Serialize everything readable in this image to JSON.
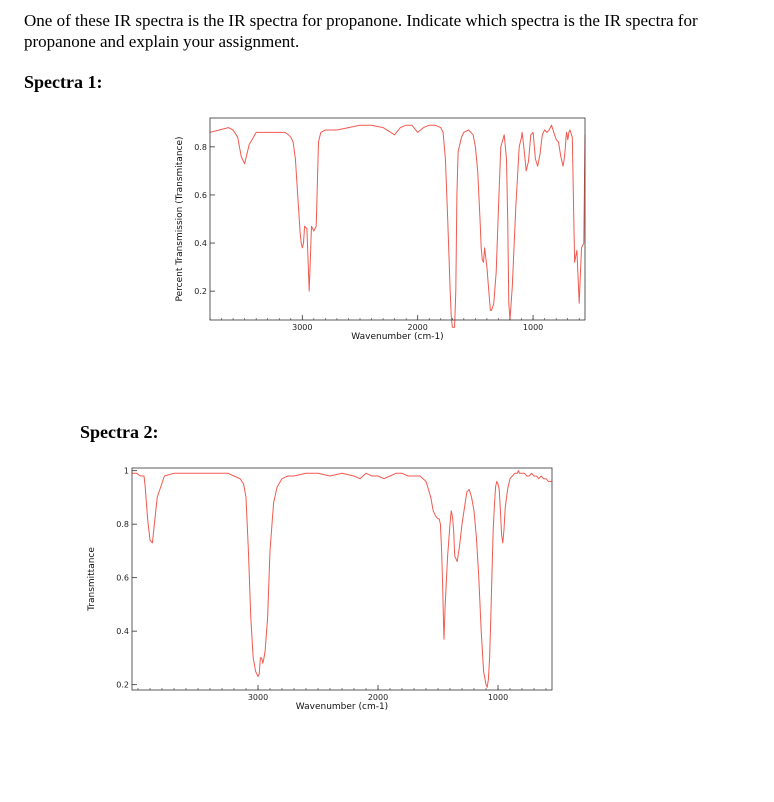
{
  "question": "One of these IR spectra is the IR spectra for propanone.  Indicate which spectra is the IR spectra for propanone and explain your assignment.",
  "spectrum1_heading": "Spectra 1:",
  "spectrum2_heading": "Spectra 2:",
  "colors": {
    "trace": "#f05a50",
    "axis": "#333333"
  },
  "chart_data": [
    {
      "type": "line",
      "title": "",
      "xlabel": "Wavenumber (cm-1)",
      "ylabel": "Percent Transmission (Transmitance)",
      "x_reversed": true,
      "xlim": [
        3800,
        550
      ],
      "ylim": [
        0.08,
        0.92
      ],
      "x_ticks": [
        3000,
        2000,
        1000
      ],
      "x_tick_labels": [
        "3000",
        "2000",
        "1000"
      ],
      "y_ticks": [
        0.2,
        0.4,
        0.6,
        0.8
      ],
      "y_tick_labels": [
        "0.2",
        "0.4",
        "0.6",
        "0.8"
      ],
      "grid": false,
      "series": [
        {
          "x": [
            3800,
            3720,
            3640,
            3600,
            3560,
            3530,
            3500,
            3460,
            3400,
            3300,
            3200,
            3150,
            3120,
            3100,
            3080,
            3060,
            3040,
            3020,
            3010,
            3000,
            2990,
            2980,
            2960,
            2940,
            2920,
            2900,
            2880,
            2860,
            2840,
            2800,
            2760,
            2700,
            2600,
            2500,
            2400,
            2300,
            2200,
            2150,
            2100,
            2050,
            2000,
            1950,
            1900,
            1850,
            1800,
            1780,
            1760,
            1740,
            1720,
            1710,
            1700,
            1690,
            1680,
            1670,
            1660,
            1650,
            1620,
            1600,
            1560,
            1520,
            1500,
            1480,
            1460,
            1450,
            1440,
            1430,
            1420,
            1400,
            1380,
            1370,
            1360,
            1340,
            1320,
            1300,
            1280,
            1250,
            1230,
            1220,
            1210,
            1200,
            1180,
            1150,
            1120,
            1100,
            1095,
            1090,
            1080,
            1060,
            1040,
            1020,
            1000,
            980,
            960,
            940,
            920,
            900,
            880,
            860,
            840,
            820,
            800,
            780,
            760,
            740,
            730,
            720,
            715,
            710,
            705,
            700,
            695,
            690,
            680,
            660,
            640,
            620,
            600,
            580,
            560,
            550
          ],
          "y": [
            0.86,
            0.87,
            0.88,
            0.87,
            0.84,
            0.76,
            0.73,
            0.81,
            0.86,
            0.86,
            0.86,
            0.86,
            0.85,
            0.84,
            0.82,
            0.75,
            0.6,
            0.45,
            0.4,
            0.38,
            0.4,
            0.47,
            0.46,
            0.2,
            0.47,
            0.45,
            0.47,
            0.82,
            0.86,
            0.87,
            0.87,
            0.87,
            0.88,
            0.89,
            0.89,
            0.88,
            0.85,
            0.88,
            0.89,
            0.89,
            0.86,
            0.88,
            0.89,
            0.89,
            0.88,
            0.86,
            0.75,
            0.5,
            0.22,
            0.1,
            0.05,
            0.05,
            0.05,
            0.2,
            0.6,
            0.78,
            0.84,
            0.86,
            0.87,
            0.85,
            0.8,
            0.7,
            0.5,
            0.38,
            0.33,
            0.32,
            0.38,
            0.3,
            0.18,
            0.12,
            0.12,
            0.15,
            0.28,
            0.55,
            0.8,
            0.85,
            0.75,
            0.5,
            0.15,
            0.08,
            0.22,
            0.55,
            0.8,
            0.84,
            0.86,
            0.84,
            0.8,
            0.7,
            0.74,
            0.85,
            0.86,
            0.75,
            0.72,
            0.77,
            0.85,
            0.87,
            0.86,
            0.87,
            0.89,
            0.86,
            0.83,
            0.82,
            0.76,
            0.72,
            0.75,
            0.8,
            0.84,
            0.86,
            0.85,
            0.83,
            0.84,
            0.86,
            0.87,
            0.84,
            0.32,
            0.37,
            0.15,
            0.38,
            0.4,
            0.85
          ]
        }
      ]
    },
    {
      "type": "line",
      "title": "",
      "xlabel": "Wavenumber (cm-1)",
      "ylabel": "Transmittance",
      "x_reversed": true,
      "xlim": [
        4050,
        550
      ],
      "ylim": [
        0.18,
        1.01
      ],
      "x_ticks": [
        3000,
        2000,
        1000
      ],
      "x_tick_labels": [
        "3000",
        "2000",
        "1000"
      ],
      "y_ticks": [
        0.2,
        0.4,
        0.6,
        0.8,
        1.0
      ],
      "y_tick_labels": [
        "0.2",
        "0.4",
        "0.6",
        "0.8",
        "1"
      ],
      "grid": false,
      "series": [
        {
          "x": [
            4050,
            4010,
            3980,
            3950,
            3940,
            3920,
            3900,
            3880,
            3840,
            3780,
            3700,
            3600,
            3500,
            3400,
            3350,
            3300,
            3250,
            3200,
            3150,
            3120,
            3100,
            3080,
            3060,
            3040,
            3020,
            3000,
            2990,
            2980,
            2970,
            2960,
            2950,
            2940,
            2920,
            2900,
            2870,
            2840,
            2800,
            2750,
            2700,
            2600,
            2500,
            2400,
            2300,
            2200,
            2150,
            2100,
            2050,
            2000,
            1950,
            1900,
            1850,
            1800,
            1750,
            1700,
            1650,
            1600,
            1560,
            1540,
            1520,
            1500,
            1490,
            1480,
            1470,
            1460,
            1455,
            1450,
            1440,
            1420,
            1400,
            1390,
            1380,
            1370,
            1360,
            1340,
            1320,
            1300,
            1280,
            1260,
            1240,
            1220,
            1200,
            1180,
            1160,
            1140,
            1120,
            1100,
            1090,
            1080,
            1070,
            1060,
            1050,
            1040,
            1030,
            1020,
            1010,
            1000,
            990,
            980,
            970,
            960,
            950,
            940,
            920,
            900,
            880,
            860,
            850,
            840,
            830,
            820,
            810,
            800,
            780,
            760,
            740,
            720,
            700,
            680,
            660,
            640,
            620,
            600,
            580,
            560,
            550
          ],
          "y": [
            0.99,
            0.99,
            0.98,
            0.98,
            0.94,
            0.82,
            0.74,
            0.73,
            0.9,
            0.98,
            0.99,
            0.99,
            0.99,
            0.99,
            0.99,
            0.99,
            0.99,
            0.98,
            0.97,
            0.95,
            0.9,
            0.7,
            0.45,
            0.3,
            0.25,
            0.23,
            0.24,
            0.3,
            0.3,
            0.28,
            0.3,
            0.33,
            0.45,
            0.7,
            0.88,
            0.94,
            0.97,
            0.98,
            0.98,
            0.99,
            0.99,
            0.98,
            0.99,
            0.98,
            0.97,
            0.99,
            0.98,
            0.98,
            0.97,
            0.98,
            0.99,
            0.99,
            0.98,
            0.98,
            0.98,
            0.96,
            0.9,
            0.85,
            0.83,
            0.82,
            0.82,
            0.8,
            0.7,
            0.55,
            0.45,
            0.37,
            0.5,
            0.68,
            0.8,
            0.85,
            0.83,
            0.78,
            0.68,
            0.66,
            0.72,
            0.8,
            0.86,
            0.92,
            0.93,
            0.9,
            0.85,
            0.75,
            0.6,
            0.4,
            0.25,
            0.2,
            0.19,
            0.22,
            0.3,
            0.45,
            0.62,
            0.78,
            0.87,
            0.94,
            0.96,
            0.95,
            0.93,
            0.85,
            0.76,
            0.73,
            0.78,
            0.86,
            0.93,
            0.97,
            0.98,
            0.99,
            0.99,
            0.99,
            1.0,
            0.99,
            0.99,
            0.99,
            0.99,
            0.98,
            0.98,
            0.99,
            0.98,
            0.98,
            0.97,
            0.98,
            0.97,
            0.97,
            0.96,
            0.96,
            0.96
          ]
        }
      ]
    }
  ]
}
